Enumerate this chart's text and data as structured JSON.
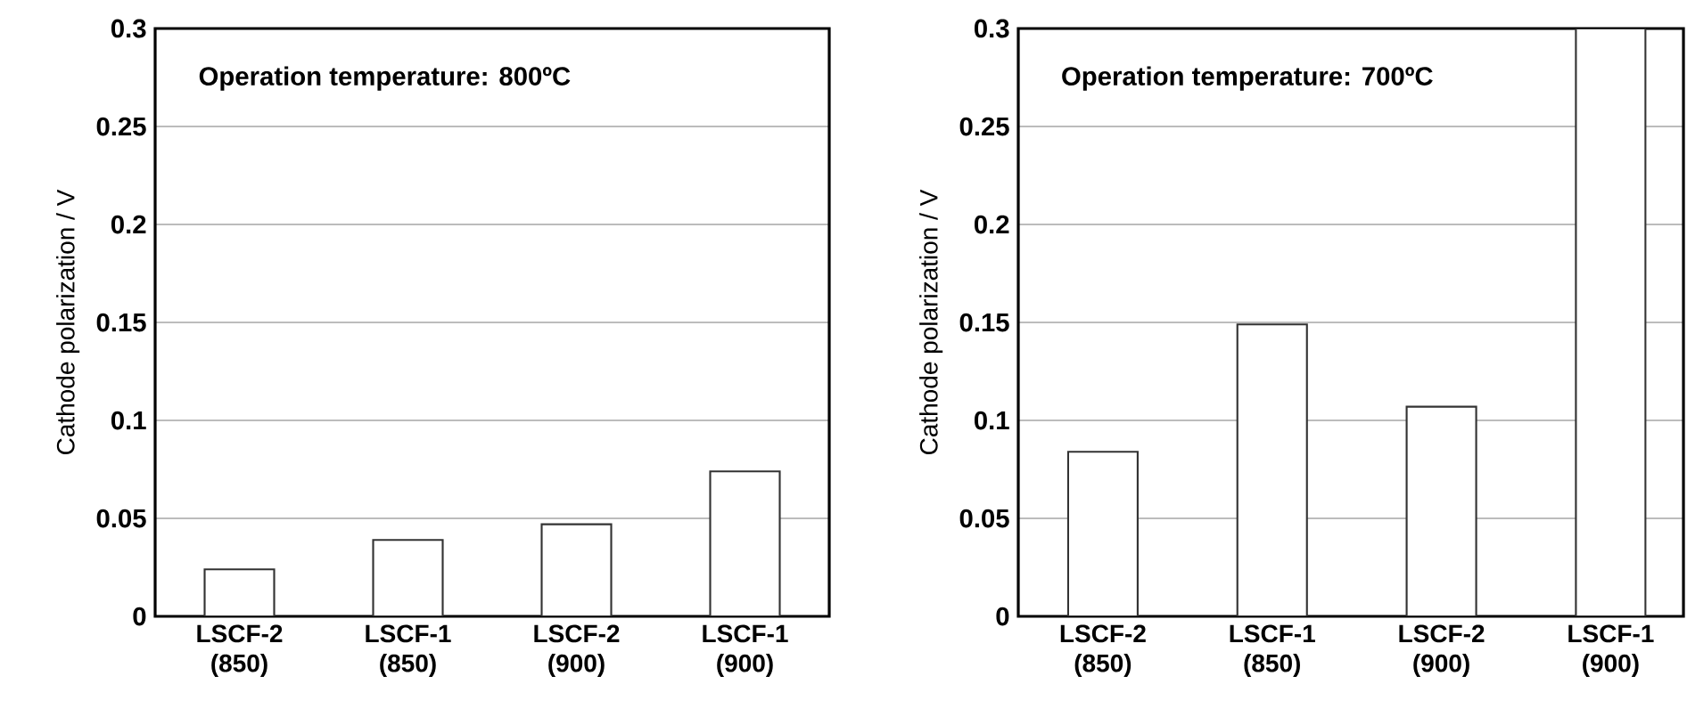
{
  "chart_data": [
    {
      "type": "bar",
      "annotations": [
        "Operation temperature: 800ºC"
      ],
      "ylabel": "Cathode polarization / V",
      "categories": [
        "LSCF-2 (850)",
        "LSCF-1 (850)",
        "LSCF-2 (900)",
        "LSCF-1 (900)"
      ],
      "values": [
        0.024,
        0.039,
        0.047,
        0.074
      ],
      "color": "#ffffff",
      "ylim": [
        0,
        0.3
      ],
      "yticks": [
        0,
        0.05,
        0.1,
        0.15,
        0.2,
        0.25,
        0.3
      ],
      "grid": "y"
    },
    {
      "type": "bar",
      "annotations": [
        "Operation temperature: 700ºC"
      ],
      "ylabel": "Cathode polarization / V",
      "categories": [
        "LSCF-2 (850)",
        "LSCF-1 (850)",
        "LSCF-2 (900)",
        "LSCF-1 (900)"
      ],
      "values": [
        0.084,
        0.149,
        0.107,
        0.3
      ],
      "color": "#ffffff",
      "ylim": [
        0,
        0.3
      ],
      "yticks": [
        0,
        0.05,
        0.1,
        0.15,
        0.2,
        0.25,
        0.3
      ],
      "grid": "y"
    }
  ]
}
